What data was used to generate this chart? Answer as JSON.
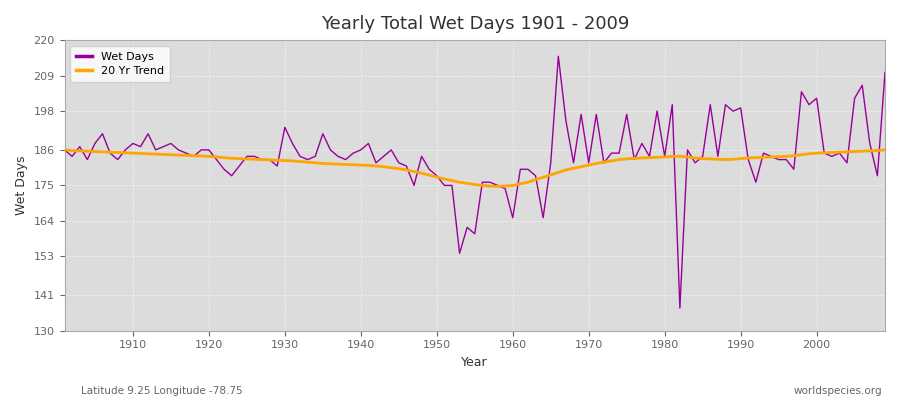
{
  "title": "Yearly Total Wet Days 1901 - 2009",
  "xlabel": "Year",
  "ylabel": "Wet Days",
  "subtitle": "Latitude 9.25 Longitude -78.75",
  "watermark": "worldspecies.org",
  "legend_wet": "Wet Days",
  "legend_trend": "20 Yr Trend",
  "wet_color": "#990099",
  "trend_color": "#FFA500",
  "plot_bg_color": "#DCDCDC",
  "fig_bg_color": "#FFFFFF",
  "ylim": [
    130,
    220
  ],
  "yticks": [
    130,
    141,
    153,
    164,
    175,
    186,
    198,
    209,
    220
  ],
  "years": [
    1901,
    1902,
    1903,
    1904,
    1905,
    1906,
    1907,
    1908,
    1909,
    1910,
    1911,
    1912,
    1913,
    1914,
    1915,
    1916,
    1917,
    1918,
    1919,
    1920,
    1921,
    1922,
    1923,
    1924,
    1925,
    1926,
    1927,
    1928,
    1929,
    1930,
    1931,
    1932,
    1933,
    1934,
    1935,
    1936,
    1937,
    1938,
    1939,
    1940,
    1941,
    1942,
    1943,
    1944,
    1945,
    1946,
    1947,
    1948,
    1949,
    1950,
    1951,
    1952,
    1953,
    1954,
    1955,
    1956,
    1957,
    1958,
    1959,
    1960,
    1961,
    1962,
    1963,
    1964,
    1965,
    1966,
    1967,
    1968,
    1969,
    1970,
    1971,
    1972,
    1973,
    1974,
    1975,
    1976,
    1977,
    1978,
    1979,
    1980,
    1981,
    1982,
    1983,
    1984,
    1985,
    1986,
    1987,
    1988,
    1989,
    1990,
    1991,
    1992,
    1993,
    1994,
    1995,
    1996,
    1997,
    1998,
    1999,
    2000,
    2001,
    2002,
    2003,
    2004,
    2005,
    2006,
    2007,
    2008,
    2009
  ],
  "wet_days": [
    186,
    184,
    187,
    183,
    188,
    191,
    185,
    183,
    186,
    188,
    187,
    191,
    186,
    187,
    188,
    186,
    185,
    184,
    186,
    186,
    183,
    180,
    178,
    181,
    184,
    184,
    183,
    183,
    181,
    193,
    188,
    184,
    183,
    184,
    191,
    186,
    184,
    183,
    185,
    186,
    188,
    182,
    184,
    186,
    182,
    181,
    175,
    184,
    180,
    178,
    175,
    175,
    154,
    162,
    160,
    176,
    176,
    175,
    174,
    165,
    180,
    180,
    178,
    165,
    182,
    215,
    195,
    182,
    197,
    182,
    197,
    182,
    185,
    185,
    197,
    183,
    188,
    184,
    198,
    184,
    200,
    137,
    186,
    182,
    184,
    200,
    184,
    200,
    198,
    199,
    183,
    176,
    185,
    184,
    183,
    183,
    180,
    204,
    200,
    202,
    185,
    184,
    185,
    182,
    202,
    206,
    188,
    178,
    210
  ],
  "trend_years": [
    1901,
    1902,
    1903,
    1904,
    1905,
    1906,
    1907,
    1908,
    1909,
    1910,
    1911,
    1912,
    1913,
    1914,
    1915,
    1916,
    1917,
    1918,
    1919,
    1920,
    1921,
    1922,
    1923,
    1924,
    1925,
    1926,
    1927,
    1928,
    1929,
    1930,
    1931,
    1932,
    1933,
    1934,
    1935,
    1936,
    1937,
    1938,
    1939,
    1940,
    1941,
    1942,
    1943,
    1944,
    1945,
    1946,
    1947,
    1948,
    1949,
    1950,
    1951,
    1952,
    1953,
    1954,
    1955,
    1956,
    1957,
    1958,
    1959,
    1960,
    1961,
    1962,
    1963,
    1964,
    1965,
    1966,
    1967,
    1968,
    1969,
    1970,
    1971,
    1972,
    1973,
    1974,
    1975,
    1976,
    1977,
    1978,
    1979,
    1980,
    1981,
    1982,
    1983,
    1984,
    1985,
    1986,
    1987,
    1988,
    1989,
    1990,
    1991,
    1992,
    1993,
    1994,
    1995,
    1996,
    1997,
    1998,
    1999,
    2000,
    2001,
    2002,
    2003,
    2004,
    2005,
    2006,
    2007,
    2008,
    2009
  ],
  "trend_values": [
    186.0,
    185.8,
    185.7,
    185.6,
    185.5,
    185.4,
    185.3,
    185.2,
    185.1,
    185.0,
    184.9,
    184.8,
    184.7,
    184.6,
    184.5,
    184.4,
    184.3,
    184.2,
    184.1,
    184.0,
    183.8,
    183.6,
    183.4,
    183.3,
    183.2,
    183.1,
    183.0,
    182.9,
    182.8,
    182.7,
    182.6,
    182.4,
    182.2,
    182.0,
    181.8,
    181.7,
    181.6,
    181.5,
    181.4,
    181.3,
    181.2,
    181.0,
    180.8,
    180.5,
    180.2,
    179.8,
    179.3,
    178.8,
    178.2,
    177.6,
    177.0,
    176.5,
    176.0,
    175.6,
    175.3,
    175.0,
    174.8,
    174.7,
    174.8,
    175.0,
    175.5,
    176.0,
    176.8,
    177.5,
    178.3,
    179.0,
    179.8,
    180.3,
    180.8,
    181.3,
    181.8,
    182.2,
    182.6,
    183.0,
    183.2,
    183.4,
    183.5,
    183.6,
    183.7,
    183.8,
    184.0,
    184.0,
    183.8,
    183.5,
    183.3,
    183.2,
    183.1,
    183.0,
    183.1,
    183.3,
    183.5,
    183.6,
    183.7,
    183.8,
    183.9,
    184.0,
    184.2,
    184.5,
    184.8,
    185.0,
    185.1,
    185.2,
    185.3,
    185.4,
    185.5,
    185.6,
    185.7,
    185.8,
    186.0
  ]
}
